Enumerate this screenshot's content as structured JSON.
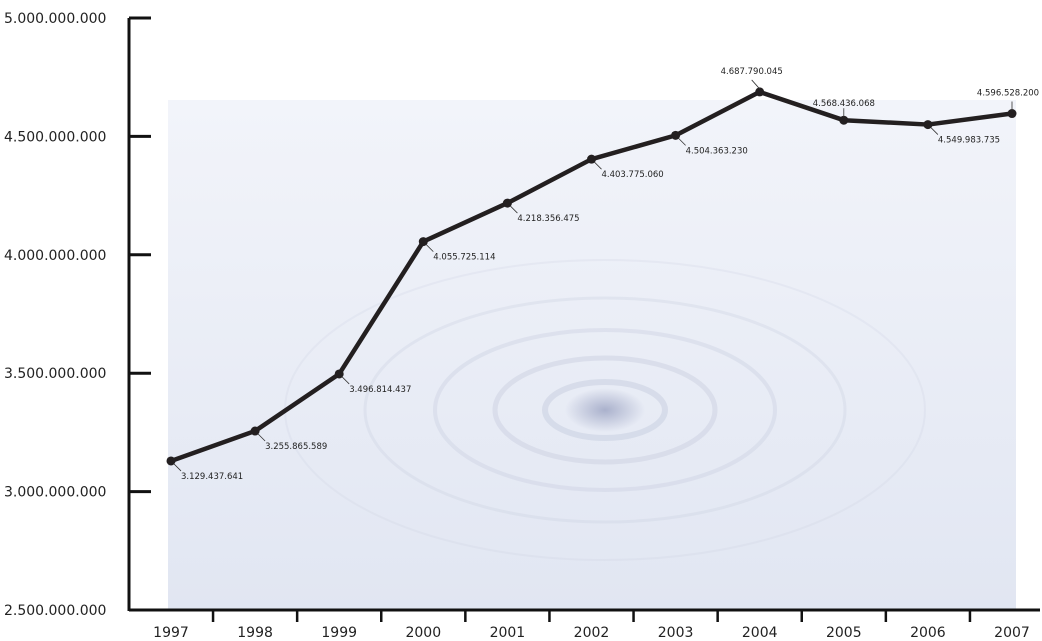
{
  "chart_data": {
    "type": "line",
    "x": [
      "1997",
      "1998",
      "1999",
      "2000",
      "2001",
      "2002",
      "2003",
      "2004",
      "2005",
      "2006",
      "2007"
    ],
    "values": [
      3129437641,
      3255865589,
      3496814437,
      4055725114,
      4218356475,
      4403775060,
      4504363230,
      4687790045,
      4568436068,
      4549983735,
      4596528200
    ],
    "data_labels": [
      "3.129.437.641",
      "3.255.865.589",
      "3.496.814.437",
      "4.055.725.114",
      "4.218.356.475",
      "4.403.775.060",
      "4.504.363.230",
      "4.687.790.045",
      "4.568.436.068",
      "4.549.983.735",
      "4.596.528.200"
    ],
    "y_ticks": [
      5000000000,
      4500000000,
      4000000000,
      3500000000,
      3000000000,
      2500000000
    ],
    "y_tick_labels": [
      "5.000.000.000",
      "4.500.000.000",
      "4.000.000.000",
      "3.500.000.000",
      "3.000.000.000",
      "2.500.000.000"
    ],
    "ylim": [
      2500000000,
      5000000000
    ],
    "grid": false,
    "title": "",
    "xlabel": "",
    "ylabel": "",
    "colors": {
      "line": "#231f20",
      "area": "#e4e8f4",
      "background": "#ffffff",
      "ripple": "#c9cfe0"
    }
  }
}
